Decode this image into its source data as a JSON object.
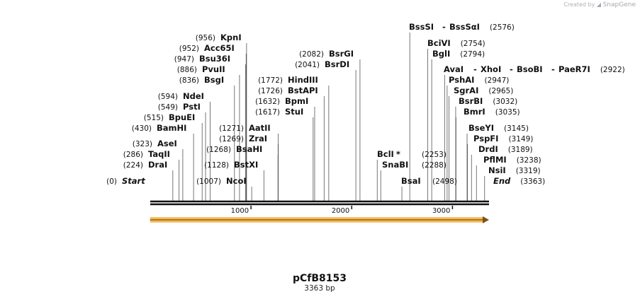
{
  "watermark": {
    "prefix": "Created by",
    "brand": "SnapGene"
  },
  "map": {
    "name": "pCfB8153",
    "length": 3363,
    "length_label": "3363 bp",
    "colors": {
      "backbone": "#111111",
      "feature": "#f7b955",
      "feature_line": "#7a5418",
      "leader": "#555555"
    },
    "ticks": [
      {
        "pos": 1000,
        "label": "1000"
      },
      {
        "pos": 2000,
        "label": "2000"
      },
      {
        "pos": 3000,
        "label": "3000"
      }
    ],
    "feature": {
      "start": 1,
      "end": 3363,
      "direction": "forward"
    },
    "sites": [
      {
        "pos": 0,
        "labels": [
          {
            "text": "Start",
            "pos": "(0)",
            "italic": true
          }
        ]
      },
      {
        "pos": 224,
        "labels": [
          {
            "text": "DraI",
            "pos": "(224)"
          }
        ]
      },
      {
        "pos": 286,
        "labels": [
          {
            "text": "TaqII",
            "pos": "(286)"
          }
        ]
      },
      {
        "pos": 323,
        "labels": [
          {
            "text": "AseI",
            "pos": "(323)"
          }
        ]
      },
      {
        "pos": 430,
        "labels": [
          {
            "text": "BamHI",
            "pos": "(430)"
          }
        ]
      },
      {
        "pos": 515,
        "labels": [
          {
            "text": "BpuEI",
            "pos": "(515)"
          }
        ]
      },
      {
        "pos": 549,
        "labels": [
          {
            "text": "PstI",
            "pos": "(549)"
          }
        ]
      },
      {
        "pos": 594,
        "labels": [
          {
            "text": "NdeI",
            "pos": "(594)"
          }
        ]
      },
      {
        "pos": 836,
        "labels": [
          {
            "text": "BsgI",
            "pos": "(836)"
          }
        ]
      },
      {
        "pos": 886,
        "labels": [
          {
            "text": "PvuII",
            "pos": "(886)"
          }
        ]
      },
      {
        "pos": 947,
        "labels": [
          {
            "text": "Bsu36I",
            "pos": "(947)"
          }
        ]
      },
      {
        "pos": 952,
        "labels": [
          {
            "text": "Acc65I",
            "pos": "(952)"
          }
        ]
      },
      {
        "pos": 956,
        "labels": [
          {
            "text": "KpnI",
            "pos": "(956)"
          }
        ]
      },
      {
        "pos": 1007,
        "labels": [
          {
            "text": "NcoI",
            "pos": "(1007)"
          }
        ]
      },
      {
        "pos": 1128,
        "labels": [
          {
            "text": "BstXI",
            "pos": "(1128)"
          }
        ]
      },
      {
        "pos": 1268,
        "labels": [
          {
            "text": "BsaHI",
            "pos": "(1268)"
          }
        ]
      },
      {
        "pos": 1269,
        "labels": [
          {
            "text": "ZraI",
            "pos": "(1269)"
          }
        ]
      },
      {
        "pos": 1271,
        "labels": [
          {
            "text": "AatII",
            "pos": "(1271)"
          }
        ]
      },
      {
        "pos": 1617,
        "labels": [
          {
            "text": "StuI",
            "pos": "(1617)"
          }
        ]
      },
      {
        "pos": 1632,
        "labels": [
          {
            "text": "BpmI",
            "pos": "(1632)"
          }
        ]
      },
      {
        "pos": 1726,
        "labels": [
          {
            "text": "BstAPI",
            "pos": "(1726)"
          }
        ]
      },
      {
        "pos": 1772,
        "labels": [
          {
            "text": "HindIII",
            "pos": "(1772)"
          }
        ]
      },
      {
        "pos": 2041,
        "labels": [
          {
            "text": "BsrDI",
            "pos": "(2041)"
          }
        ]
      },
      {
        "pos": 2082,
        "labels": [
          {
            "text": "BsrGI",
            "pos": "(2082)"
          }
        ]
      },
      {
        "pos": 2253,
        "labels": [
          {
            "text": "BclI",
            "pos": "(2253)",
            "star": "*"
          }
        ]
      },
      {
        "pos": 2288,
        "labels": [
          {
            "text": "SnaBI",
            "pos": "(2288)"
          }
        ]
      },
      {
        "pos": 2498,
        "labels": [
          {
            "text": "BsaI",
            "pos": "(2498)"
          }
        ]
      },
      {
        "pos": 2576,
        "labels": [
          {
            "text": "BssSI",
            "pos": "(2576)"
          },
          {
            "text": "BssSαI"
          }
        ]
      },
      {
        "pos": 2754,
        "labels": [
          {
            "text": "BciVI",
            "pos": "(2754)"
          }
        ]
      },
      {
        "pos": 2794,
        "labels": [
          {
            "text": "BglI",
            "pos": "(2794)"
          }
        ]
      },
      {
        "pos": 2922,
        "labels": [
          {
            "text": "AvaI",
            "pos": "(2922)"
          },
          {
            "text": "XhoI"
          },
          {
            "text": "BsoBI"
          },
          {
            "text": "PaeR7I"
          }
        ]
      },
      {
        "pos": 2947,
        "labels": [
          {
            "text": "PshAI",
            "pos": "(2947)"
          }
        ]
      },
      {
        "pos": 2965,
        "labels": [
          {
            "text": "SgrAI",
            "pos": "(2965)"
          }
        ]
      },
      {
        "pos": 3032,
        "labels": [
          {
            "text": "BsrBI",
            "pos": "(3032)"
          }
        ]
      },
      {
        "pos": 3035,
        "labels": [
          {
            "text": "BmrI",
            "pos": "(3035)"
          }
        ]
      },
      {
        "pos": 3145,
        "labels": [
          {
            "text": "BseYI",
            "pos": "(3145)"
          }
        ]
      },
      {
        "pos": 3149,
        "labels": [
          {
            "text": "PspFI",
            "pos": "(3149)"
          }
        ]
      },
      {
        "pos": 3189,
        "labels": [
          {
            "text": "DrdI",
            "pos": "(3189)"
          }
        ]
      },
      {
        "pos": 3238,
        "labels": [
          {
            "text": "PflMI",
            "pos": "(3238)"
          }
        ]
      },
      {
        "pos": 3319,
        "labels": [
          {
            "text": "NsiI",
            "pos": "(3319)"
          }
        ]
      },
      {
        "pos": 3363,
        "labels": [
          {
            "text": "End",
            "pos": "(3363)",
            "italic": true
          }
        ]
      }
    ]
  }
}
